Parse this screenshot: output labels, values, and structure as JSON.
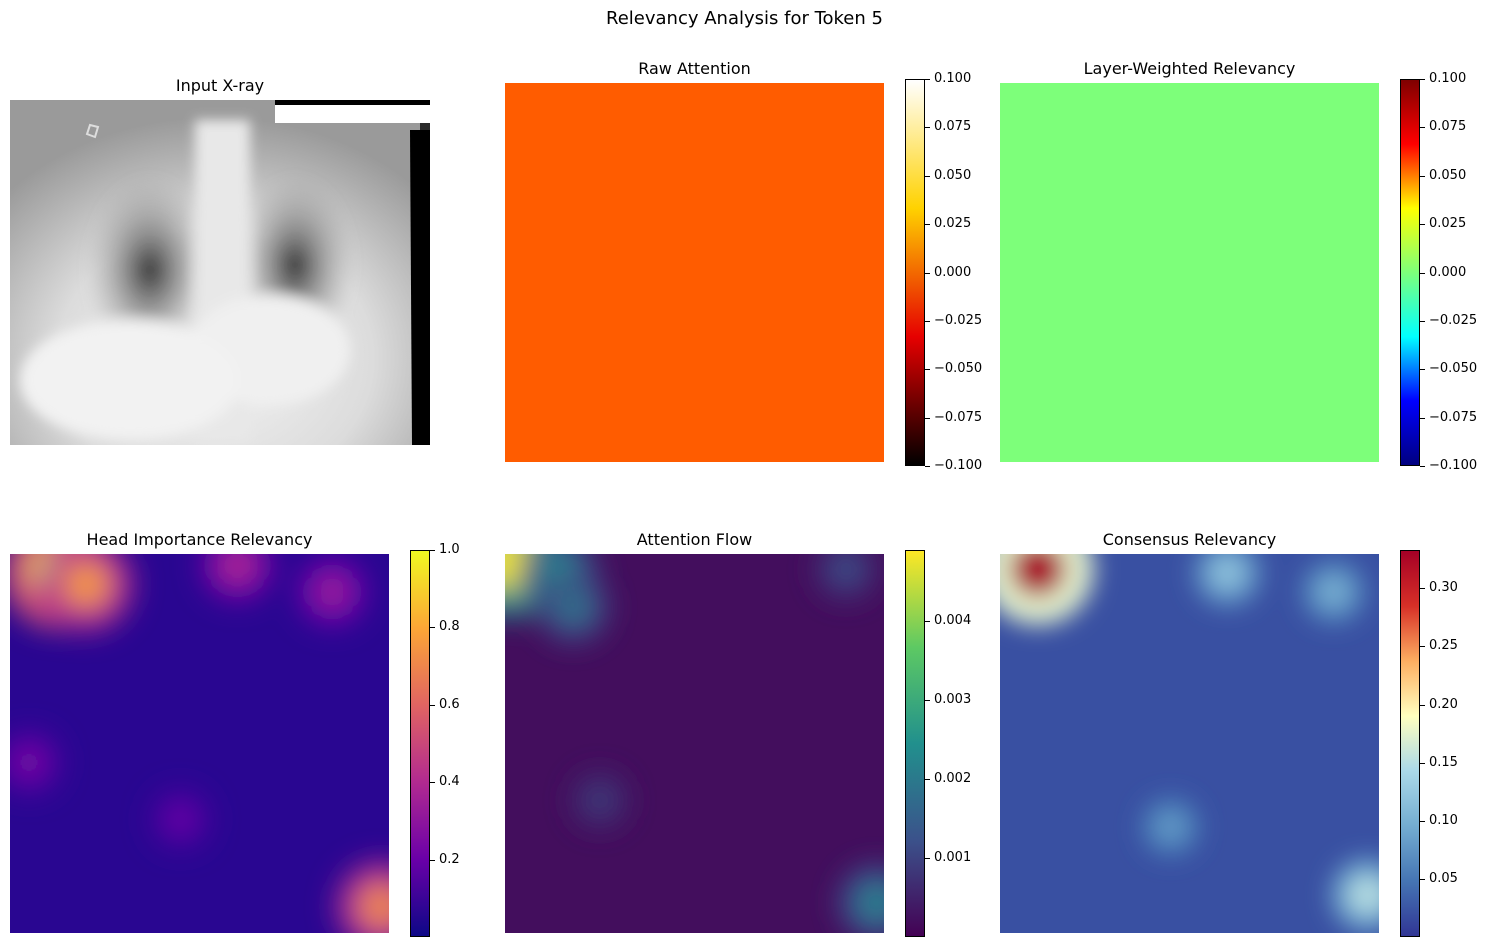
{
  "figure": {
    "title": "Relevancy Analysis for Token 5"
  },
  "colors": {
    "raw_attention_fill": "#ff5c00",
    "layer_weighted_fill": "#7dff7a",
    "hot_stops": [
      "#000000",
      "#e60000",
      "#ffd200",
      "#ffffff"
    ],
    "jet_stops": [
      "#00007f",
      "#0000ff",
      "#00ffff",
      "#7dff7a",
      "#ffff00",
      "#ff0000",
      "#7f0000"
    ],
    "plasma_stops": [
      "#0d0887",
      "#6a00a8",
      "#b12a90",
      "#e16462",
      "#fca636",
      "#f0f921"
    ],
    "viridis_stops": [
      "#440154",
      "#3b528b",
      "#21908d",
      "#5dc963",
      "#fde725"
    ],
    "rdylbu_r_stops": [
      "#313695",
      "#4575b4",
      "#74add1",
      "#abd9e9",
      "#ffffbf",
      "#fdae61",
      "#d73027",
      "#a50026"
    ]
  },
  "chart_data": [
    {
      "type": "image",
      "title": "Input X-ray",
      "content": "grayscale chest radiograph"
    },
    {
      "type": "heatmap",
      "title": "Raw Attention",
      "colormap": "hot",
      "value": 0.0,
      "colorbar": {
        "range": [
          -0.1,
          0.1
        ],
        "ticks": [
          "0.100",
          "0.075",
          "0.050",
          "0.025",
          "0.000",
          "−0.025",
          "−0.050",
          "−0.075",
          "−0.100"
        ]
      }
    },
    {
      "type": "heatmap",
      "title": "Layer-Weighted Relevancy",
      "colormap": "jet",
      "value": 0.0,
      "colorbar": {
        "range": [
          -0.1,
          0.1
        ],
        "ticks": [
          "0.100",
          "0.075",
          "0.050",
          "0.025",
          "0.000",
          "−0.025",
          "−0.050",
          "−0.075",
          "−0.100"
        ]
      }
    },
    {
      "type": "heatmap",
      "title": "Head Importance Relevancy",
      "colormap": "plasma",
      "colorbar": {
        "range": [
          0.0,
          1.0
        ],
        "ticks": [
          "1.0",
          "0.8",
          "0.6",
          "0.4",
          "0.2"
        ]
      },
      "hotspots": [
        {
          "x": 0.13,
          "y": 0.05,
          "value": 1.0
        },
        {
          "x": 0.2,
          "y": 0.08,
          "value": 0.75
        },
        {
          "x": 0.6,
          "y": 0.03,
          "value": 0.4
        },
        {
          "x": 0.85,
          "y": 0.1,
          "value": 0.35
        },
        {
          "x": 0.98,
          "y": 0.93,
          "value": 0.7
        },
        {
          "x": 0.05,
          "y": 0.55,
          "value": 0.25
        },
        {
          "x": 0.45,
          "y": 0.7,
          "value": 0.2
        }
      ]
    },
    {
      "type": "heatmap",
      "title": "Attention Flow",
      "colormap": "viridis",
      "colorbar": {
        "range": [
          0.0,
          0.0049
        ],
        "ticks": [
          "0.004",
          "0.003",
          "0.002",
          "0.001"
        ]
      },
      "hotspots": [
        {
          "x": 0.01,
          "y": 0.02,
          "value": 0.0048
        },
        {
          "x": 0.14,
          "y": 0.05,
          "value": 0.0024
        },
        {
          "x": 0.18,
          "y": 0.14,
          "value": 0.0019
        },
        {
          "x": 0.98,
          "y": 0.92,
          "value": 0.0022
        },
        {
          "x": 0.9,
          "y": 0.04,
          "value": 0.0012
        },
        {
          "x": 0.25,
          "y": 0.65,
          "value": 0.0009
        }
      ]
    },
    {
      "type": "heatmap",
      "title": "Consensus Relevancy",
      "colormap": "RdYlBu_r",
      "colorbar": {
        "range": [
          0.0,
          0.333
        ],
        "ticks": [
          "0.30",
          "0.25",
          "0.20",
          "0.15",
          "0.10",
          "0.05"
        ]
      },
      "hotspots": [
        {
          "x": 0.1,
          "y": 0.04,
          "value": 0.33
        },
        {
          "x": 0.6,
          "y": 0.05,
          "value": 0.12
        },
        {
          "x": 0.88,
          "y": 0.1,
          "value": 0.1
        },
        {
          "x": 0.97,
          "y": 0.9,
          "value": 0.15
        },
        {
          "x": 0.45,
          "y": 0.72,
          "value": 0.08
        }
      ]
    }
  ]
}
